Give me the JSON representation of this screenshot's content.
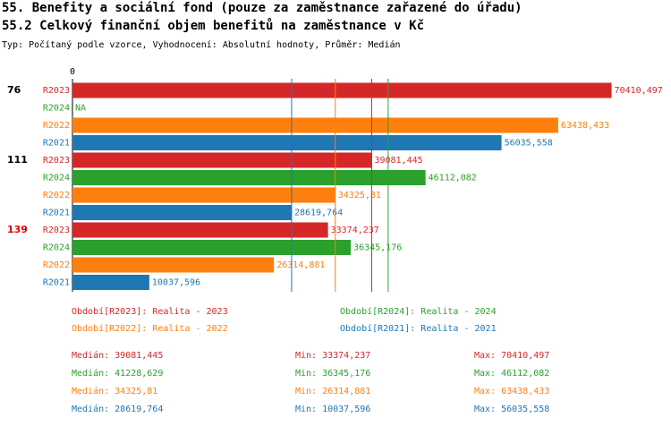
{
  "chart_data": {
    "type": "bar",
    "orientation": "horizontal",
    "title": "55. Benefity a sociální fond (pouze za zaměstnance zařazené do úřadu)",
    "subtitle": "55.2 Celkový finanční objem benefitů na zaměstnance v Kč",
    "note": "Typ: Počítaný podle vzorce, Vyhodnocení: Absolutní hodnoty, Průměr: Medián",
    "categories": [
      "76",
      "111",
      "139"
    ],
    "category_label_colors": [
      "#000000",
      "#000000",
      "#e00000"
    ],
    "xlim": [
      0,
      77000
    ],
    "xticks": [
      0
    ],
    "stat_labels": {
      "median": "Medián:",
      "min": "Min:",
      "max": "Max:"
    },
    "series": [
      {
        "name": "R2023",
        "legend": "Období[R2023]: Realita - 2023",
        "color": "#d62728",
        "values": [
          70410.497,
          39081.445,
          33374.237
        ],
        "value_labels": [
          "70410,497",
          "39081,445",
          "33374,237"
        ],
        "median": {
          "value": 39081.445,
          "label": "39081,445"
        },
        "min": {
          "value": 33374.237,
          "label": "33374,237"
        },
        "max": {
          "value": 70410.497,
          "label": "70410,497"
        }
      },
      {
        "name": "R2024",
        "legend": "Období[R2024]: Realita - 2024",
        "color": "#2ca02c",
        "values": [
          null,
          46112.082,
          36345.176
        ],
        "value_labels": [
          "NA",
          "46112,082",
          "36345,176"
        ],
        "median": {
          "value": 41228.629,
          "label": "41228,629"
        },
        "min": {
          "value": 36345.176,
          "label": "36345,176"
        },
        "max": {
          "value": 46112.082,
          "label": "46112,082"
        }
      },
      {
        "name": "R2022",
        "legend": "Období[R2022]: Realita - 2022",
        "color": "#ff7f0e",
        "values": [
          63438.433,
          34325.81,
          26314.881
        ],
        "value_labels": [
          "63438,433",
          "34325,81",
          "26314,881"
        ],
        "median": {
          "value": 34325.81,
          "label": "34325,81"
        },
        "min": {
          "value": 26314.881,
          "label": "26314,881"
        },
        "max": {
          "value": 63438.433,
          "label": "63438,433"
        }
      },
      {
        "name": "R2021",
        "legend": "Období[R2021]: Realita - 2021",
        "color": "#1f77b4",
        "values": [
          56035.558,
          28619.764,
          10037.596
        ],
        "value_labels": [
          "56035,558",
          "28619,764",
          "10037,596"
        ],
        "median": {
          "value": 28619.764,
          "label": "28619,764"
        },
        "min": {
          "value": 10037.596,
          "label": "10037,596"
        },
        "max": {
          "value": 56035.558,
          "label": "56035,558"
        }
      }
    ]
  }
}
